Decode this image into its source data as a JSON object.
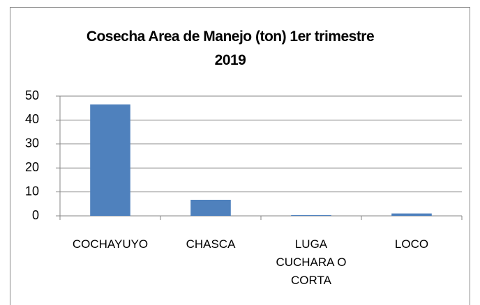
{
  "chart_data": {
    "type": "bar",
    "title": "Cosecha Area de Manejo (ton) 1er trimestre 2019",
    "categories": [
      "COCHAYUYO",
      "CHASCA",
      "LUGA CUCHARA O CORTA",
      "LOCO"
    ],
    "values": [
      46.5,
      6.7,
      0.3,
      1
    ],
    "color": "#4f81bd",
    "ylim": [
      0,
      50
    ],
    "yticks": [
      0,
      10,
      20,
      30,
      40,
      50
    ],
    "grid": true
  }
}
